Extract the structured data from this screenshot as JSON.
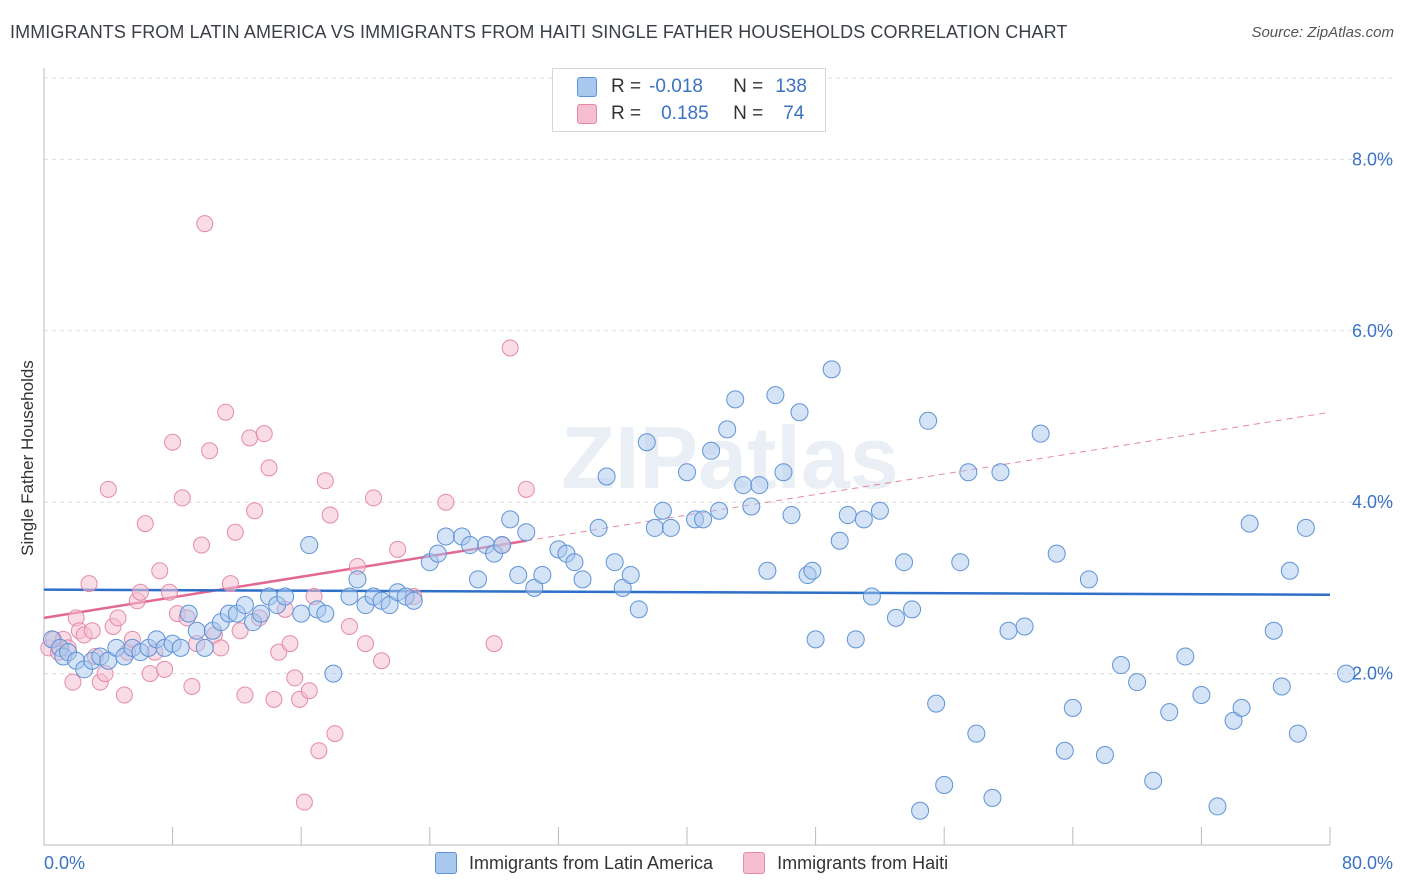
{
  "title": "IMMIGRANTS FROM LATIN AMERICA VS IMMIGRANTS FROM HAITI SINGLE FATHER HOUSEHOLDS CORRELATION CHART",
  "source": "Source: ZipAtlas.com",
  "watermark": "ZIPatlas",
  "legend": {
    "r_label": "R =",
    "n_label": "N =",
    "rows": [
      {
        "r": "-0.018",
        "n": "138"
      },
      {
        "r": "0.185",
        "n": "74"
      }
    ]
  },
  "colors": {
    "blue_fill": "#a9c8ee",
    "blue_stroke": "#5f93d6",
    "blue_line": "#2d6fc9",
    "pink_fill": "#f6bfd1",
    "pink_stroke": "#e48aab",
    "pink_line": "#e06892",
    "axis_text": "#3a72c4"
  },
  "chart_data": {
    "type": "scatter",
    "title": "IMMIGRANTS FROM LATIN AMERICA VS IMMIGRANTS FROM HAITI SINGLE FATHER HOUSEHOLDS CORRELATION CHART",
    "xlabel": "",
    "ylabel": "Single Father Households",
    "xlim": [
      0,
      80
    ],
    "ylim": [
      0,
      8.0
    ],
    "x_tick_labels": [
      "0.0%",
      "80.0%"
    ],
    "y_ticks": [
      2.0,
      4.0,
      6.0,
      8.0
    ],
    "y_tick_labels": [
      "2.0%",
      "4.0%",
      "6.0%",
      "8.0%"
    ],
    "grid": "horizontal dashed",
    "legend_position": "top-center",
    "series": [
      {
        "name": "Immigrants from Latin America",
        "trend": {
          "x0": 0,
          "y0": 2.98,
          "x1": 80,
          "y1": 2.92
        },
        "points": [
          [
            0.5,
            2.4
          ],
          [
            1.0,
            2.3
          ],
          [
            1.2,
            2.2
          ],
          [
            1.5,
            2.25
          ],
          [
            2.0,
            2.15
          ],
          [
            2.5,
            2.05
          ],
          [
            3.0,
            2.15
          ],
          [
            3.5,
            2.2
          ],
          [
            4.0,
            2.15
          ],
          [
            4.5,
            2.3
          ],
          [
            5.0,
            2.2
          ],
          [
            5.5,
            2.3
          ],
          [
            6.0,
            2.25
          ],
          [
            6.5,
            2.3
          ],
          [
            7.0,
            2.4
          ],
          [
            7.5,
            2.3
          ],
          [
            8.0,
            2.35
          ],
          [
            8.5,
            2.3
          ],
          [
            9.0,
            2.7
          ],
          [
            9.5,
            2.5
          ],
          [
            10.0,
            2.3
          ],
          [
            10.5,
            2.5
          ],
          [
            11.0,
            2.6
          ],
          [
            11.5,
            2.7
          ],
          [
            12.0,
            2.7
          ],
          [
            12.5,
            2.8
          ],
          [
            13.0,
            2.6
          ],
          [
            13.5,
            2.7
          ],
          [
            14.0,
            2.9
          ],
          [
            14.5,
            2.8
          ],
          [
            15.0,
            2.9
          ],
          [
            16.5,
            3.5
          ],
          [
            16.0,
            2.7
          ],
          [
            17.0,
            2.75
          ],
          [
            17.5,
            2.7
          ],
          [
            18.0,
            2.0
          ],
          [
            19.0,
            2.9
          ],
          [
            19.5,
            3.1
          ],
          [
            20.0,
            2.8
          ],
          [
            20.5,
            2.9
          ],
          [
            21.0,
            2.85
          ],
          [
            21.5,
            2.8
          ],
          [
            22.0,
            2.95
          ],
          [
            22.5,
            2.9
          ],
          [
            23.0,
            2.85
          ],
          [
            24.0,
            3.3
          ],
          [
            24.5,
            3.4
          ],
          [
            25.0,
            3.6
          ],
          [
            26.0,
            3.6
          ],
          [
            26.5,
            3.5
          ],
          [
            27.0,
            3.1
          ],
          [
            27.5,
            3.5
          ],
          [
            28.0,
            3.4
          ],
          [
            28.5,
            3.5
          ],
          [
            29.0,
            3.8
          ],
          [
            29.5,
            3.15
          ],
          [
            30.0,
            3.65
          ],
          [
            30.5,
            3.0
          ],
          [
            31.0,
            3.15
          ],
          [
            32.0,
            3.45
          ],
          [
            32.5,
            3.4
          ],
          [
            33.0,
            3.3
          ],
          [
            33.5,
            3.1
          ],
          [
            34.5,
            3.7
          ],
          [
            35.0,
            4.3
          ],
          [
            35.5,
            3.3
          ],
          [
            36.0,
            3.0
          ],
          [
            36.5,
            3.15
          ],
          [
            37.0,
            2.75
          ],
          [
            37.5,
            4.7
          ],
          [
            38.0,
            3.7
          ],
          [
            38.5,
            3.9
          ],
          [
            39.0,
            3.7
          ],
          [
            40.0,
            4.35
          ],
          [
            40.5,
            3.8
          ],
          [
            41.0,
            3.8
          ],
          [
            41.5,
            4.6
          ],
          [
            42.0,
            3.9
          ],
          [
            42.5,
            4.85
          ],
          [
            43.0,
            5.2
          ],
          [
            43.5,
            4.2
          ],
          [
            44.0,
            3.95
          ],
          [
            44.5,
            4.2
          ],
          [
            45.0,
            3.2
          ],
          [
            45.5,
            5.25
          ],
          [
            46.0,
            4.35
          ],
          [
            46.5,
            3.85
          ],
          [
            47.0,
            5.05
          ],
          [
            47.5,
            3.15
          ],
          [
            47.8,
            3.2
          ],
          [
            48.0,
            2.4
          ],
          [
            49.0,
            5.55
          ],
          [
            49.5,
            3.55
          ],
          [
            50.0,
            3.85
          ],
          [
            50.5,
            2.4
          ],
          [
            51.0,
            3.8
          ],
          [
            51.5,
            2.9
          ],
          [
            52.0,
            3.9
          ],
          [
            53.0,
            2.65
          ],
          [
            53.5,
            3.3
          ],
          [
            54.0,
            2.75
          ],
          [
            54.5,
            0.4
          ],
          [
            55.0,
            4.95
          ],
          [
            55.5,
            1.65
          ],
          [
            56.0,
            0.7
          ],
          [
            57.0,
            3.3
          ],
          [
            57.5,
            4.35
          ],
          [
            58.0,
            1.3
          ],
          [
            59.0,
            0.55
          ],
          [
            59.5,
            4.35
          ],
          [
            60.0,
            2.5
          ],
          [
            61.0,
            2.55
          ],
          [
            62.0,
            4.8
          ],
          [
            63.0,
            3.4
          ],
          [
            63.5,
            1.1
          ],
          [
            64.0,
            1.6
          ],
          [
            65.0,
            3.1
          ],
          [
            66.0,
            1.05
          ],
          [
            67.0,
            2.1
          ],
          [
            68.0,
            1.9
          ],
          [
            69.0,
            0.75
          ],
          [
            70.0,
            1.55
          ],
          [
            71.0,
            2.2
          ],
          [
            72.0,
            1.75
          ],
          [
            73.0,
            0.45
          ],
          [
            74.0,
            1.45
          ],
          [
            74.5,
            1.6
          ],
          [
            75.0,
            3.75
          ],
          [
            76.5,
            2.5
          ],
          [
            77.0,
            1.85
          ],
          [
            78.0,
            1.3
          ],
          [
            78.5,
            3.7
          ],
          [
            77.5,
            3.2
          ],
          [
            81.0,
            2.0
          ]
        ]
      },
      {
        "name": "Immigrants from Haiti",
        "trend": {
          "x0": 0,
          "y0": 2.65,
          "x1": 30,
          "y1": 3.55,
          "dash_x1": 80,
          "dash_y1": 5.05
        },
        "points": [
          [
            0.3,
            2.3
          ],
          [
            0.6,
            2.4
          ],
          [
            0.9,
            2.25
          ],
          [
            1.2,
            2.4
          ],
          [
            1.5,
            2.3
          ],
          [
            1.8,
            1.9
          ],
          [
            2.0,
            2.65
          ],
          [
            2.2,
            2.5
          ],
          [
            2.5,
            2.45
          ],
          [
            2.8,
            3.05
          ],
          [
            3.0,
            2.5
          ],
          [
            3.2,
            2.2
          ],
          [
            3.5,
            1.9
          ],
          [
            3.8,
            2.0
          ],
          [
            4.0,
            4.15
          ],
          [
            4.3,
            2.55
          ],
          [
            4.6,
            2.65
          ],
          [
            5.0,
            1.75
          ],
          [
            5.2,
            2.25
          ],
          [
            5.5,
            2.4
          ],
          [
            5.8,
            2.85
          ],
          [
            6.0,
            2.95
          ],
          [
            6.3,
            3.75
          ],
          [
            6.6,
            2.0
          ],
          [
            6.9,
            2.25
          ],
          [
            7.2,
            3.2
          ],
          [
            7.5,
            2.05
          ],
          [
            7.8,
            2.95
          ],
          [
            8.0,
            4.7
          ],
          [
            8.3,
            2.7
          ],
          [
            8.6,
            4.05
          ],
          [
            8.9,
            2.65
          ],
          [
            9.2,
            1.85
          ],
          [
            9.5,
            2.35
          ],
          [
            9.8,
            3.5
          ],
          [
            10.0,
            7.25
          ],
          [
            10.3,
            4.6
          ],
          [
            10.6,
            2.45
          ],
          [
            11.0,
            2.3
          ],
          [
            11.3,
            5.05
          ],
          [
            11.6,
            3.05
          ],
          [
            11.9,
            3.65
          ],
          [
            12.2,
            2.5
          ],
          [
            12.5,
            1.75
          ],
          [
            12.8,
            4.75
          ],
          [
            13.1,
            3.9
          ],
          [
            13.4,
            2.65
          ],
          [
            13.7,
            4.8
          ],
          [
            14.0,
            4.4
          ],
          [
            14.3,
            1.7
          ],
          [
            14.6,
            2.25
          ],
          [
            15.0,
            2.75
          ],
          [
            15.3,
            2.35
          ],
          [
            15.6,
            1.95
          ],
          [
            15.9,
            1.7
          ],
          [
            16.2,
            0.5
          ],
          [
            16.5,
            1.8
          ],
          [
            16.8,
            2.9
          ],
          [
            17.1,
            1.1
          ],
          [
            17.5,
            4.25
          ],
          [
            17.8,
            3.85
          ],
          [
            18.1,
            1.3
          ],
          [
            19.0,
            2.55
          ],
          [
            19.5,
            3.25
          ],
          [
            20.0,
            2.35
          ],
          [
            20.5,
            4.05
          ],
          [
            21.0,
            2.15
          ],
          [
            22.0,
            3.45
          ],
          [
            28.0,
            2.35
          ],
          [
            28.5,
            3.5
          ],
          [
            29.0,
            5.8
          ],
          [
            30.0,
            4.15
          ],
          [
            25.0,
            4.0
          ],
          [
            23.0,
            2.9
          ]
        ]
      }
    ]
  },
  "bottom_legend": [
    "Immigrants from Latin America",
    "Immigrants from Haiti"
  ]
}
